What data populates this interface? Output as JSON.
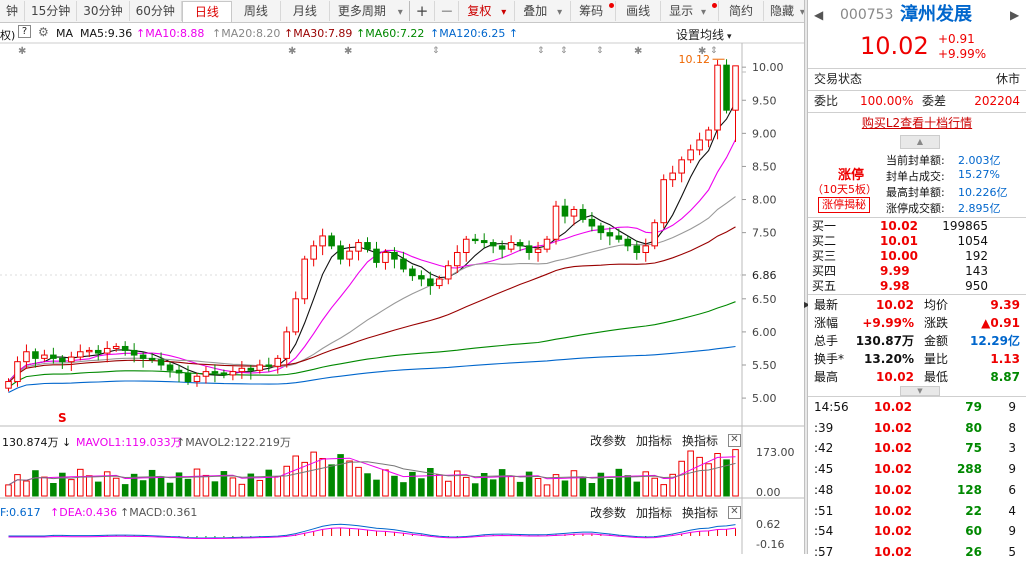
{
  "toolbar": {
    "tabs": [
      "钟",
      "15分钟",
      "30分钟",
      "60分钟",
      "日线",
      "周线",
      "月线",
      "更多周期"
    ],
    "active_tab": "日线",
    "more_arrow": "▾",
    "plus": "+",
    "minus": "—",
    "fuquan": "复权",
    "diejia": "叠加",
    "chouma": "筹码",
    "huaxian": "画线",
    "xianshi": "显示",
    "jianyue": "简约",
    "yincang": "隐藏"
  },
  "ma_line": {
    "prefix": "权)",
    "ma": "MA",
    "ma5": "MA5:9.36",
    "ma10": "MA10:8.88",
    "ma20": "MA20:8.20",
    "ma30": "MA30:7.89",
    "ma60": "MA60:7.22",
    "ma120": "MA120:6.25",
    "settings": "设置均线"
  },
  "main_chart": {
    "high_label": "10.12",
    "y_ticks": [
      "10.00",
      "9.50",
      "9.00",
      "8.50",
      "8.00",
      "7.50",
      "6.86",
      "6.50",
      "6.00",
      "5.50",
      "5.00"
    ],
    "s_marker": "S"
  },
  "vol": {
    "v": "130.874万",
    "mavol1": "MAVOL1:119.033万",
    "mavol2": "MAVOL2:122.219万",
    "param": "改参数",
    "add_ind": "加指标",
    "switch_ind": "换指标",
    "y_ticks": [
      "173.00",
      "0.00"
    ]
  },
  "macd": {
    "dif": "F:0.617",
    "dea": "DEA:0.436",
    "macd": "MACD:0.361",
    "param": "改参数",
    "add_ind": "加指标",
    "switch_ind": "换指标",
    "y_ticks": [
      "0.62",
      "-0.16"
    ]
  },
  "quote": {
    "code": "000753",
    "name": "漳州发展",
    "price": "10.02",
    "change": "+0.91",
    "pct": "+9.99%",
    "status_label": "交易状态",
    "status_value": "休市",
    "weibi_label": "委比",
    "weibi_value": "100.00%",
    "weicha_label": "委差",
    "weicha_value": "202204",
    "l2_link": "购买L2查看十档行情",
    "limit_title": "涨停",
    "limit_days": "（10天5板）",
    "limit_btn": "涨停揭秘",
    "seal_rows": [
      {
        "label": "当前封单额:",
        "value": "2.003亿"
      },
      {
        "label": "封单占成交:",
        "value": "15.27%"
      },
      {
        "label": "最高封单额:",
        "value": "10.226亿"
      },
      {
        "label": "涨停成交额:",
        "value": "2.895亿"
      }
    ],
    "bids": [
      {
        "label": "买一",
        "price": "10.02",
        "vol": "199865"
      },
      {
        "label": "买二",
        "price": "10.01",
        "vol": "1054"
      },
      {
        "label": "买三",
        "price": "10.00",
        "vol": "192"
      },
      {
        "label": "买四",
        "price": "9.99",
        "vol": "143"
      },
      {
        "label": "买五",
        "price": "9.98",
        "vol": "950"
      }
    ],
    "stats": [
      {
        "l1": "最新",
        "v1": "10.02",
        "l2": "均价",
        "v2": "9.39"
      },
      {
        "l1": "涨幅",
        "v1": "+9.99%",
        "l2": "涨跌",
        "v2": "▲0.91"
      },
      {
        "l1": "总手",
        "v1": "130.87万",
        "l2": "金额",
        "v2": "12.29亿"
      },
      {
        "l1": "换手*",
        "v1": "13.20%",
        "l2": "量比",
        "v2": "1.13"
      },
      {
        "l1": "最高",
        "v1": "10.02",
        "l2": "最低",
        "v2": "8.87"
      }
    ],
    "ticks": [
      {
        "time": "14:56",
        "price": "10.02",
        "vol": "79",
        "n": "9"
      },
      {
        "time": ":39",
        "price": "10.02",
        "vol": "80",
        "n": "8"
      },
      {
        "time": ":42",
        "price": "10.02",
        "vol": "75",
        "n": "3"
      },
      {
        "time": ":45",
        "price": "10.02",
        "vol": "288",
        "n": "9"
      },
      {
        "time": ":48",
        "price": "10.02",
        "vol": "128",
        "n": "6"
      },
      {
        "time": ":51",
        "price": "10.02",
        "vol": "22",
        "n": "4"
      },
      {
        "time": ":54",
        "price": "10.02",
        "vol": "60",
        "n": "9"
      },
      {
        "time": ":57",
        "price": "10.02",
        "vol": "26",
        "n": "5"
      }
    ]
  },
  "candles": {
    "o": [
      5.15,
      5.25,
      5.55,
      5.7,
      5.6,
      5.65,
      5.6,
      5.55,
      5.62,
      5.7,
      5.72,
      5.68,
      5.75,
      5.78,
      5.72,
      5.65,
      5.6,
      5.58,
      5.5,
      5.42,
      5.38,
      5.25,
      5.33,
      5.4,
      5.38,
      5.35,
      5.4,
      5.45,
      5.42,
      5.5,
      5.48,
      5.6,
      6.0,
      6.5,
      7.1,
      7.3,
      7.45,
      7.3,
      7.1,
      7.22,
      7.35,
      7.25,
      7.05,
      7.2,
      7.1,
      6.95,
      6.85,
      6.8,
      6.7,
      6.8,
      7.0,
      7.2,
      7.4,
      7.38,
      7.35,
      7.3,
      7.25,
      7.35,
      7.3,
      7.2,
      7.25,
      7.4,
      7.9,
      7.75,
      7.85,
      7.7,
      7.6,
      7.5,
      7.45,
      7.4,
      7.3,
      7.2,
      7.3,
      7.65,
      8.3,
      8.4,
      8.6,
      8.75,
      8.9,
      9.05,
      10.03,
      9.35
    ],
    "c": [
      5.25,
      5.55,
      5.7,
      5.6,
      5.65,
      5.6,
      5.55,
      5.62,
      5.7,
      5.72,
      5.68,
      5.75,
      5.78,
      5.72,
      5.65,
      5.6,
      5.58,
      5.5,
      5.42,
      5.38,
      5.25,
      5.33,
      5.4,
      5.38,
      5.35,
      5.4,
      5.45,
      5.42,
      5.5,
      5.48,
      5.6,
      6.0,
      6.5,
      7.1,
      7.3,
      7.45,
      7.3,
      7.1,
      7.22,
      7.35,
      7.25,
      7.05,
      7.2,
      7.1,
      6.95,
      6.85,
      6.8,
      6.7,
      6.8,
      7.0,
      7.2,
      7.4,
      7.38,
      7.35,
      7.3,
      7.25,
      7.35,
      7.3,
      7.2,
      7.25,
      7.4,
      7.9,
      7.75,
      7.85,
      7.7,
      7.6,
      7.5,
      7.45,
      7.4,
      7.3,
      7.2,
      7.3,
      7.65,
      8.3,
      8.4,
      8.6,
      8.75,
      8.9,
      9.05,
      10.03,
      9.35,
      10.02
    ]
  }
}
